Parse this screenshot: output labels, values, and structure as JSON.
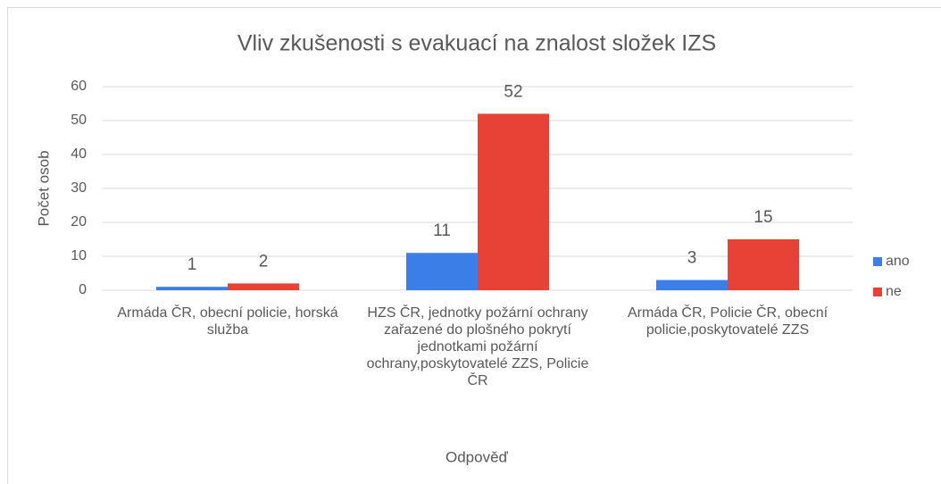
{
  "chart_data": {
    "type": "bar",
    "title": "Vliv zkušenosti s evakuací na znalost složek IZS",
    "x_label": "Odpověď",
    "y_label": "Počet osob",
    "categories": [
      "Armáda ČR, obecní policie, horská služba",
      "HZS ČR, jednotky požární ochrany zařazené do plošného pokrytí jednotkami požární ochrany,poskytovatelé ZZS, Policie ČR",
      "Armáda ČR, Policie ČR, obecní policie,poskytovatelé ZZS"
    ],
    "series": [
      {
        "name": "ano",
        "color": "#3c7ee8",
        "values": [
          1,
          11,
          3
        ]
      },
      {
        "name": "ne",
        "color": "#e84236",
        "values": [
          2,
          52,
          15
        ]
      }
    ],
    "ylim": [
      0,
      60
    ],
    "yticks": [
      0,
      10,
      20,
      30,
      40,
      50,
      60
    ],
    "grid": true,
    "legend": "right"
  }
}
